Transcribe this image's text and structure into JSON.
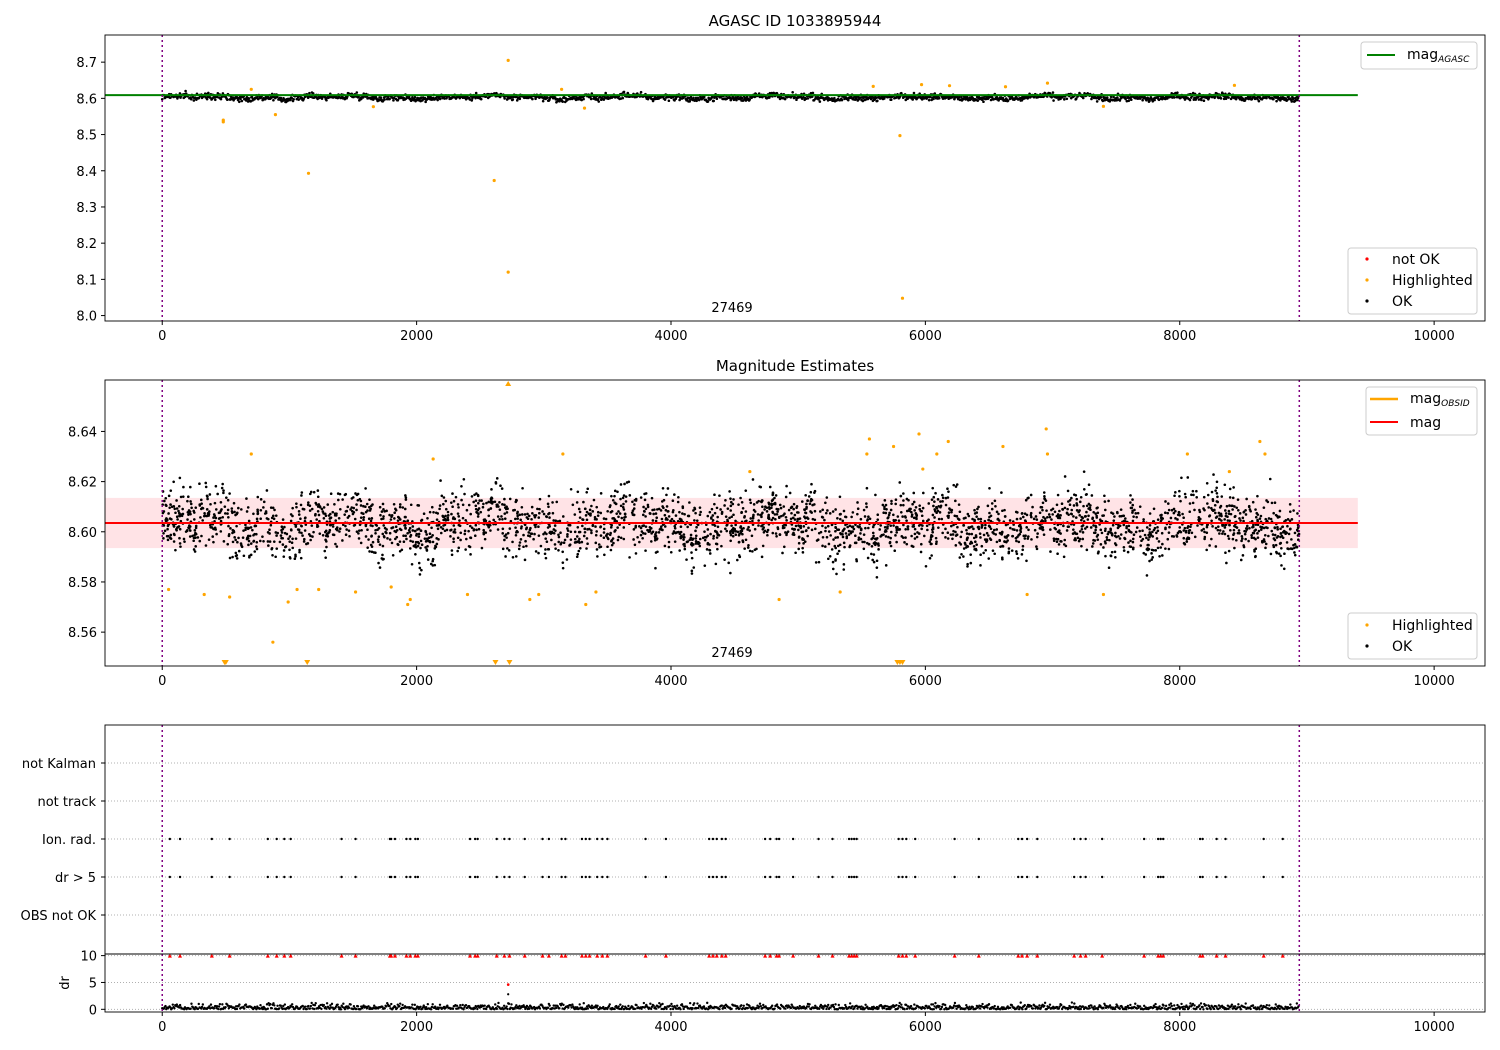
{
  "figure": {
    "shared_xticks": [
      "0",
      "2000",
      "4000",
      "6000",
      "8000",
      "10000"
    ],
    "x_limits": [
      -450,
      10400
    ],
    "obs_span": [
      0,
      8940
    ]
  },
  "chart_data": [
    {
      "type": "scatter",
      "title": "AGASC ID 1033895944",
      "xlabel": "",
      "ylabel": "",
      "xlim": [
        -450,
        10400
      ],
      "ylim": [
        7.985,
        8.775
      ],
      "yticks": [
        "8.0",
        "8.1",
        "8.2",
        "8.3",
        "8.4",
        "8.5",
        "8.6",
        "8.7"
      ],
      "obsid_label": "27469",
      "reference_lines": [
        {
          "name": "mag_AGASC",
          "label_main": "mag",
          "label_sub": "AGASC",
          "y": 8.609,
          "color": "#008000",
          "x_range": [
            -450,
            9400
          ]
        }
      ],
      "series": [
        {
          "name": "not OK",
          "color": "#ff0000",
          "points": []
        },
        {
          "name": "Highlighted",
          "color": "#ffa500",
          "points": [
            [
              480,
              8.535
            ],
            [
              480,
              8.54
            ],
            [
              700,
              8.625
            ],
            [
              890,
              8.555
            ],
            [
              1150,
              8.393
            ],
            [
              2610,
              8.373
            ],
            [
              2720,
              8.705
            ],
            [
              2720,
              8.12
            ],
            [
              3140,
              8.625
            ],
            [
              5590,
              8.633
            ],
            [
              5800,
              8.497
            ],
            [
              5820,
              8.048
            ],
            [
              5970,
              8.638
            ],
            [
              6190,
              8.635
            ],
            [
              6630,
              8.632
            ],
            [
              6960,
              8.642
            ],
            [
              8430,
              8.636
            ],
            [
              1660,
              8.577
            ],
            [
              3320,
              8.573
            ],
            [
              7400,
              8.578
            ]
          ]
        },
        {
          "name": "OK",
          "color": "#000000",
          "band": {
            "x_range": [
              0,
              8940
            ],
            "y_center": 8.603,
            "y_half_spread": 0.012,
            "n": 1800
          }
        }
      ],
      "legend": {
        "placement": "lower-right",
        "entries": [
          "not OK",
          "Highlighted",
          "OK"
        ]
      },
      "line_legend": {
        "placement": "upper-right"
      }
    },
    {
      "type": "scatter",
      "title": "Magnitude Estimates",
      "xlabel": "",
      "ylabel": "",
      "xlim": [
        -450,
        10400
      ],
      "ylim": [
        8.5465,
        8.6605
      ],
      "yticks": [
        "8.56",
        "8.58",
        "8.60",
        "8.62",
        "8.64"
      ],
      "obsid_label": "27469",
      "reference_lines": [
        {
          "name": "mag_OBSID",
          "label_main": "mag",
          "label_sub": "OBSID",
          "color": "#ffa500"
        },
        {
          "name": "mag",
          "label_main": "mag",
          "label_sub": "",
          "y": 8.6035,
          "color": "#ff0000",
          "x_range": [
            -450,
            9400
          ]
        }
      ],
      "error_band": {
        "y_low": 8.5935,
        "y_high": 8.6135,
        "x_range": [
          -450,
          9400
        ],
        "color": "#ffc0c8"
      },
      "series": [
        {
          "name": "Highlighted",
          "color": "#ffa500",
          "points": [
            [
              50,
              8.577
            ],
            [
              330,
              8.575
            ],
            [
              530,
              8.574
            ],
            [
              700,
              8.631
            ],
            [
              870,
              8.556
            ],
            [
              990,
              8.572
            ],
            [
              1060,
              8.577
            ],
            [
              1230,
              8.577
            ],
            [
              1520,
              8.576
            ],
            [
              1800,
              8.578
            ],
            [
              1930,
              8.571
            ],
            [
              1950,
              8.573
            ],
            [
              2130,
              8.629
            ],
            [
              2400,
              8.575
            ],
            [
              2890,
              8.573
            ],
            [
              2960,
              8.575
            ],
            [
              3150,
              8.631
            ],
            [
              3330,
              8.571
            ],
            [
              3410,
              8.576
            ],
            [
              4620,
              8.624
            ],
            [
              4850,
              8.573
            ],
            [
              5330,
              8.576
            ],
            [
              5540,
              8.631
            ],
            [
              5560,
              8.637
            ],
            [
              5750,
              8.634
            ],
            [
              5950,
              8.639
            ],
            [
              5980,
              8.625
            ],
            [
              6090,
              8.631
            ],
            [
              6180,
              8.636
            ],
            [
              6610,
              8.634
            ],
            [
              6800,
              8.575
            ],
            [
              6950,
              8.641
            ],
            [
              6960,
              8.631
            ],
            [
              7400,
              8.575
            ],
            [
              8060,
              8.631
            ],
            [
              8390,
              8.624
            ],
            [
              8630,
              8.636
            ],
            [
              8670,
              8.631
            ]
          ],
          "markers_below": [
            490,
            500,
            1140,
            2620,
            2730,
            5780,
            5800,
            5820
          ],
          "markers_above": [
            2720
          ]
        },
        {
          "name": "OK",
          "color": "#000000",
          "band": {
            "x_range": [
              0,
              8940
            ],
            "y_center": 8.603,
            "y_half_spread": 0.012,
            "n": 3200
          }
        }
      ],
      "legend": {
        "placement": "lower-right",
        "entries": [
          "Highlighted",
          "OK"
        ]
      },
      "line_legend": {
        "placement": "upper-right"
      }
    },
    {
      "type": "scatter",
      "title": "",
      "xlabel": "",
      "ylabel": "",
      "xlim": [
        -450,
        10400
      ],
      "rows": [
        "not Kalman",
        "not track",
        "Ion. rad.",
        "dr > 5",
        "OBS not OK"
      ],
      "row_events": {
        "Ion. rad.": [
          60,
          140,
          390,
          530,
          830,
          900,
          960,
          1010,
          1410,
          1520,
          1790,
          1800,
          1830,
          1920,
          1950,
          1990,
          2010,
          2420,
          2460,
          2480,
          2630,
          2690,
          2730,
          2850,
          2990,
          3040,
          3140,
          3170,
          3300,
          3330,
          3360,
          3420,
          3460,
          3500,
          3800,
          3960,
          4300,
          4330,
          4360,
          4400,
          4430,
          4740,
          4780,
          4830,
          4850,
          4960,
          5160,
          5270,
          5400,
          5420,
          5440,
          5460,
          5790,
          5820,
          5850,
          5920,
          6230,
          6420,
          6730,
          6760,
          6800,
          6880,
          7170,
          7220,
          7260,
          7390,
          7720,
          7830,
          7850,
          7870,
          8160,
          8180,
          8290,
          8360,
          8660,
          8810
        ],
        "dr > 5": [
          60,
          140,
          390,
          530,
          830,
          900,
          960,
          1010,
          1410,
          1520,
          1790,
          1800,
          1830,
          1920,
          1950,
          1990,
          2010,
          2420,
          2460,
          2480,
          2630,
          2690,
          2730,
          2850,
          2990,
          3040,
          3140,
          3170,
          3300,
          3330,
          3360,
          3420,
          3460,
          3500,
          3800,
          3960,
          4300,
          4330,
          4360,
          4400,
          4430,
          4740,
          4780,
          4830,
          4850,
          4960,
          5160,
          5270,
          5400,
          5420,
          5440,
          5460,
          5790,
          5820,
          5850,
          5920,
          6230,
          6420,
          6730,
          6760,
          6800,
          6880,
          7170,
          7220,
          7260,
          7390,
          7720,
          7830,
          7850,
          7870,
          8160,
          8180,
          8290,
          8360,
          8660,
          8810
        ]
      }
    },
    {
      "type": "scatter",
      "title": "",
      "xlabel": "",
      "ylabel": "dr",
      "xlim": [
        -450,
        10400
      ],
      "ylim": [
        -0.5,
        10.3
      ],
      "yticks": [
        "0",
        "5",
        "10"
      ],
      "clipped_markers": {
        "y": 10,
        "color": "#ff0000",
        "x": [
          60,
          140,
          390,
          530,
          830,
          900,
          960,
          1010,
          1410,
          1520,
          1790,
          1800,
          1830,
          1920,
          1950,
          1990,
          2010,
          2420,
          2460,
          2480,
          2630,
          2690,
          2730,
          2850,
          2990,
          3040,
          3140,
          3170,
          3300,
          3330,
          3360,
          3420,
          3460,
          3500,
          3800,
          3960,
          4300,
          4330,
          4360,
          4400,
          4430,
          4740,
          4780,
          4830,
          4850,
          4960,
          5160,
          5270,
          5400,
          5420,
          5440,
          5460,
          5790,
          5820,
          5850,
          5920,
          6230,
          6420,
          6730,
          6760,
          6800,
          6880,
          7170,
          7220,
          7260,
          7390,
          7720,
          7830,
          7850,
          7870,
          8160,
          8180,
          8290,
          8360,
          8660,
          8810
        ]
      },
      "points": [
        [
          2720,
          4.6
        ],
        [
          2720,
          2.8
        ]
      ],
      "baseline_band": {
        "x_range": [
          0,
          8940
        ],
        "y_low": 0,
        "y_high": 1.3,
        "n": 1400
      }
    }
  ]
}
